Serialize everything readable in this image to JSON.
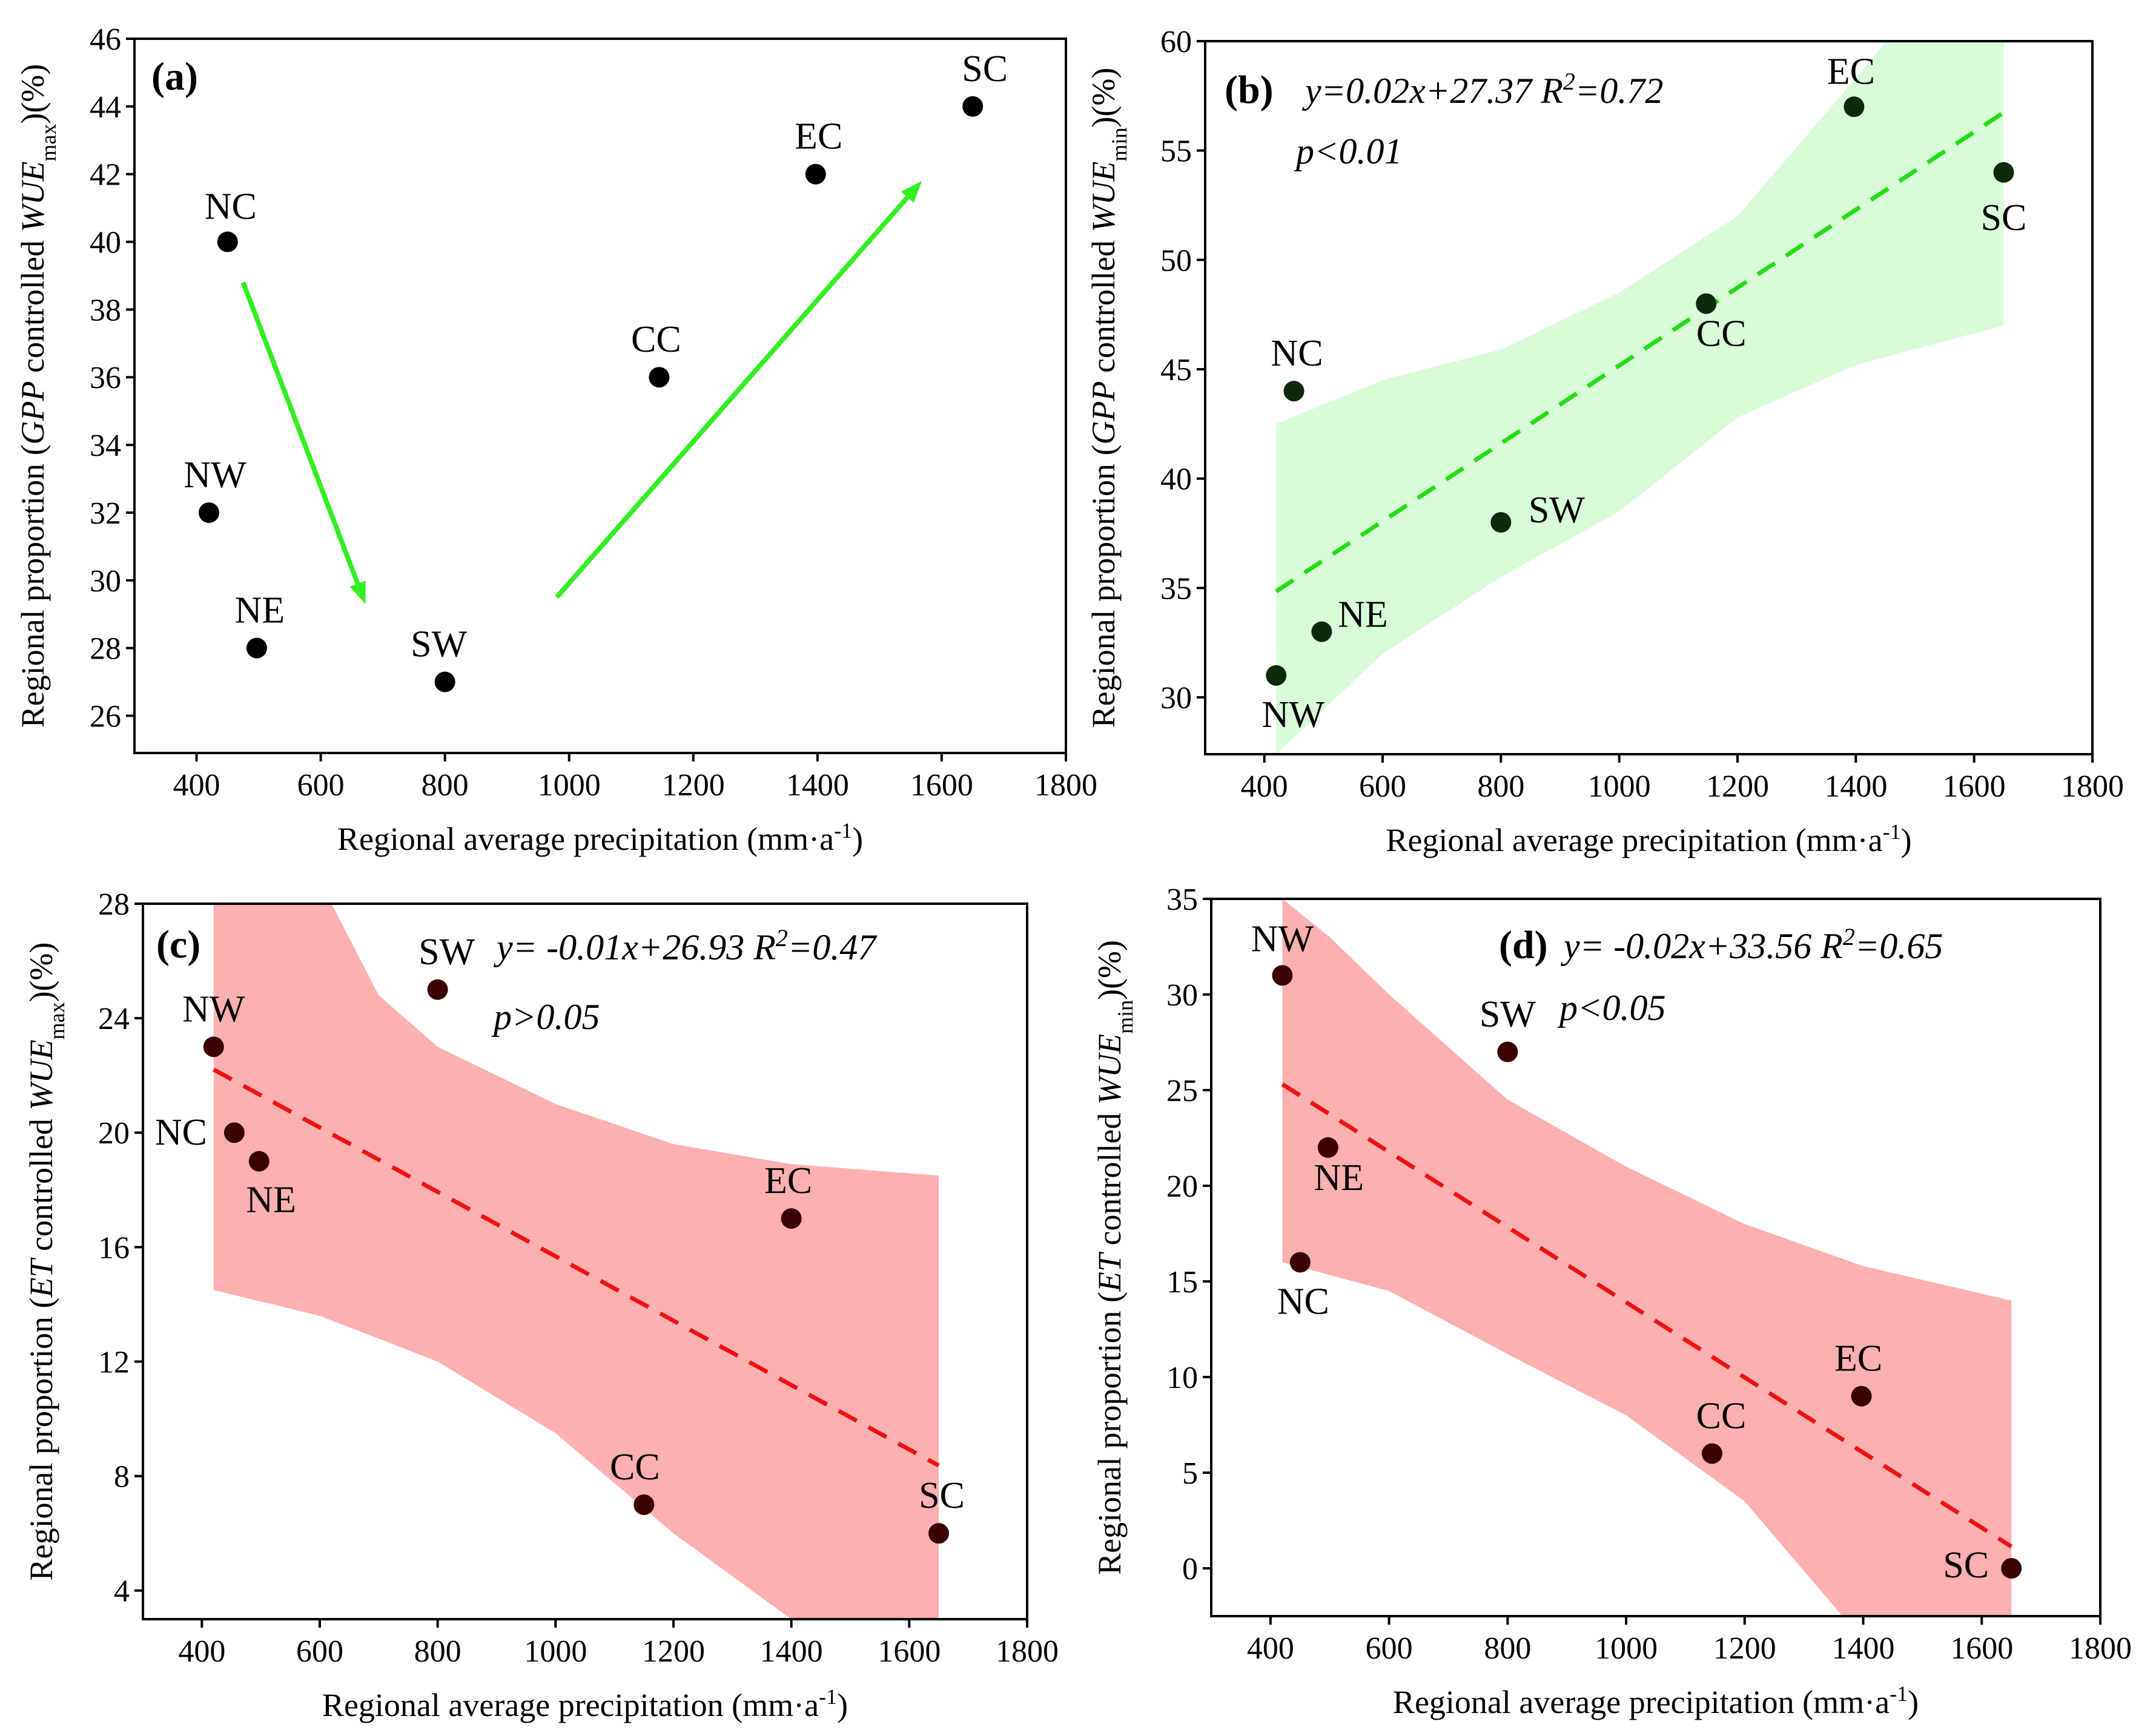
{
  "chart_data": [
    {
      "panel": "(a)",
      "type": "scatter",
      "xlabel": "Regional average precipitation (mm·a",
      "xlabel_sup": "-1",
      "xlabel_end": ")",
      "ylabel_pre": "Regional proportion (",
      "ylabel_var": "GPP",
      "ylabel_mid": " controlled ",
      "ylabel_wue": "WUE",
      "ylabel_sub": "max",
      "ylabel_end": ")(%)",
      "xlim": [
        300,
        1800
      ],
      "ylim": [
        24.9,
        46
      ],
      "xticks": [
        400,
        600,
        800,
        1000,
        1200,
        1400,
        1600,
        1800
      ],
      "yticks": [
        26,
        28,
        30,
        32,
        34,
        36,
        38,
        40,
        42,
        44,
        46
      ],
      "point_color": "#000000",
      "arrow_color": "#33ee22",
      "points": [
        {
          "label": "NC",
          "x": 450,
          "y": 40
        },
        {
          "label": "NW",
          "x": 420,
          "y": 32
        },
        {
          "label": "NE",
          "x": 497,
          "y": 28
        },
        {
          "label": "SW",
          "x": 800,
          "y": 27
        },
        {
          "label": "CC",
          "x": 1145,
          "y": 36
        },
        {
          "label": "EC",
          "x": 1397,
          "y": 42
        },
        {
          "label": "SC",
          "x": 1650,
          "y": 44
        }
      ],
      "arrows": [
        {
          "from": [
            475,
            38.8
          ],
          "to": [
            672,
            29.3
          ]
        },
        {
          "from": [
            980,
            29.5
          ],
          "to": [
            1568,
            41.8
          ]
        }
      ]
    },
    {
      "panel": "(b)",
      "type": "scatter",
      "equation": "y=0.02x+27.37",
      "r2_label": "R",
      "r2_value": "=0.72",
      "pvalue": "p<0.01",
      "xlabel": "Regional average precipitation (mm·a",
      "xlabel_sup": "-1",
      "xlabel_end": ")",
      "ylabel_pre": "Regional proportion (",
      "ylabel_var": "GPP",
      "ylabel_mid": " controlled ",
      "ylabel_wue": "WUE",
      "ylabel_sub": "min",
      "ylabel_end": ")(%)",
      "xlim": [
        300,
        1800
      ],
      "ylim": [
        27.4,
        60
      ],
      "xticks": [
        400,
        600,
        800,
        1000,
        1200,
        1400,
        1600,
        1800
      ],
      "yticks": [
        30,
        35,
        40,
        45,
        50,
        55,
        60
      ],
      "point_color": "#0b2a0b",
      "fit_color": "#22dd11",
      "band_color": "#d8fbd8",
      "fit": {
        "slope": 0.0178,
        "intercept": 27.37,
        "x0": 420,
        "x1": 1650
      },
      "band_upper": [
        [
          420,
          42.5
        ],
        [
          600,
          44.5
        ],
        [
          800,
          45.9
        ],
        [
          1000,
          48.5
        ],
        [
          1200,
          52.0
        ],
        [
          1400,
          58.3
        ],
        [
          1452,
          60.0
        ],
        [
          1650,
          60.0
        ]
      ],
      "band_lower": [
        [
          420,
          27.4
        ],
        [
          600,
          32.0
        ],
        [
          800,
          35.5
        ],
        [
          1000,
          38.5
        ],
        [
          1200,
          42.8
        ],
        [
          1400,
          45.2
        ],
        [
          1650,
          47.0
        ]
      ],
      "points": [
        {
          "label": "EC",
          "x": 1397,
          "y": 57
        },
        {
          "label": "SC",
          "x": 1650,
          "y": 54
        },
        {
          "label": "CC",
          "x": 1147,
          "y": 48
        },
        {
          "label": "NC",
          "x": 450,
          "y": 44
        },
        {
          "label": "SW",
          "x": 800,
          "y": 38
        },
        {
          "label": "NE",
          "x": 497,
          "y": 33
        },
        {
          "label": "NW",
          "x": 420,
          "y": 31
        }
      ]
    },
    {
      "panel": "(c)",
      "type": "scatter",
      "equation": "y= -0.01x+26.93",
      "r2_label": "R",
      "r2_value": "=0.47",
      "pvalue": "p>0.05",
      "xlabel": "Regional average precipitation (mm·a",
      "xlabel_sup": "-1",
      "xlabel_end": ")",
      "ylabel_pre": "Regional proportion (",
      "ylabel_var": "ET",
      "ylabel_mid": " controlled ",
      "ylabel_wue": "WUE",
      "ylabel_sub": "max",
      "ylabel_end": ")(%)",
      "xlim": [
        300,
        1800
      ],
      "ylim": [
        3,
        28
      ],
      "xticks": [
        400,
        600,
        800,
        1000,
        1200,
        1400,
        1600,
        1800
      ],
      "yticks": [
        4,
        8,
        12,
        16,
        20,
        24,
        28
      ],
      "point_color": "#3a0000",
      "fit_color": "#ee1111",
      "band_color": "#fdb0b0",
      "fit": {
        "slope": -0.01125,
        "intercept": 26.93,
        "x0": 420,
        "x1": 1650
      },
      "band_upper": [
        [
          420,
          28.0
        ],
        [
          620,
          28.0
        ],
        [
          700,
          24.8
        ],
        [
          800,
          23.0
        ],
        [
          1000,
          21.0
        ],
        [
          1200,
          19.6
        ],
        [
          1400,
          18.9
        ],
        [
          1650,
          18.5
        ]
      ],
      "band_lower": [
        [
          420,
          14.5
        ],
        [
          600,
          13.6
        ],
        [
          800,
          12.0
        ],
        [
          1000,
          9.5
        ],
        [
          1200,
          6.0
        ],
        [
          1400,
          3.0
        ],
        [
          1650,
          3.0
        ]
      ],
      "points": [
        {
          "label": "SW",
          "x": 800,
          "y": 25
        },
        {
          "label": "NW",
          "x": 420,
          "y": 23
        },
        {
          "label": "NC",
          "x": 455,
          "y": 20
        },
        {
          "label": "NE",
          "x": 497,
          "y": 19
        },
        {
          "label": "EC",
          "x": 1400,
          "y": 17
        },
        {
          "label": "CC",
          "x": 1150,
          "y": 7
        },
        {
          "label": "SC",
          "x": 1650,
          "y": 6
        }
      ]
    },
    {
      "panel": "(d)",
      "type": "scatter",
      "equation": "y= -0.02x+33.56",
      "r2_label": "R",
      "r2_value": "=0.65",
      "pvalue": "p<0.05",
      "xlabel": "Regional average precipitation (mm·a",
      "xlabel_sup": "-1",
      "xlabel_end": ")",
      "ylabel_pre": "Regional proportion (",
      "ylabel_var": "ET",
      "ylabel_mid": " controlled ",
      "ylabel_wue": "WUE",
      "ylabel_sub": "min",
      "ylabel_end": ")(%)",
      "xlim": [
        300,
        1800
      ],
      "ylim": [
        -2.5,
        35
      ],
      "xticks": [
        400,
        600,
        800,
        1000,
        1200,
        1400,
        1600,
        1800
      ],
      "yticks": [
        0,
        5,
        10,
        15,
        20,
        25,
        30,
        35
      ],
      "point_color": "#3a0000",
      "fit_color": "#ee1111",
      "band_color": "#fdb0b0",
      "fit": {
        "slope": -0.01965,
        "intercept": 33.56,
        "x0": 420,
        "x1": 1650
      },
      "band_upper": [
        [
          420,
          35.0
        ],
        [
          500,
          33.0
        ],
        [
          600,
          30.0
        ],
        [
          800,
          24.5
        ],
        [
          1000,
          21.0
        ],
        [
          1200,
          18.0
        ],
        [
          1400,
          15.8
        ],
        [
          1650,
          14.0
        ]
      ],
      "band_lower": [
        [
          420,
          16.0
        ],
        [
          600,
          14.5
        ],
        [
          800,
          11.2
        ],
        [
          1000,
          8.0
        ],
        [
          1200,
          3.5
        ],
        [
          1365,
          -2.5
        ],
        [
          1650,
          -2.5
        ]
      ],
      "points": [
        {
          "label": "NW",
          "x": 420,
          "y": 31
        },
        {
          "label": "SW",
          "x": 800,
          "y": 27
        },
        {
          "label": "NE",
          "x": 497,
          "y": 22
        },
        {
          "label": "NC",
          "x": 450,
          "y": 16
        },
        {
          "label": "EC",
          "x": 1397,
          "y": 9
        },
        {
          "label": "CC",
          "x": 1145,
          "y": 6
        },
        {
          "label": "SC",
          "x": 1650,
          "y": 0
        }
      ]
    }
  ]
}
